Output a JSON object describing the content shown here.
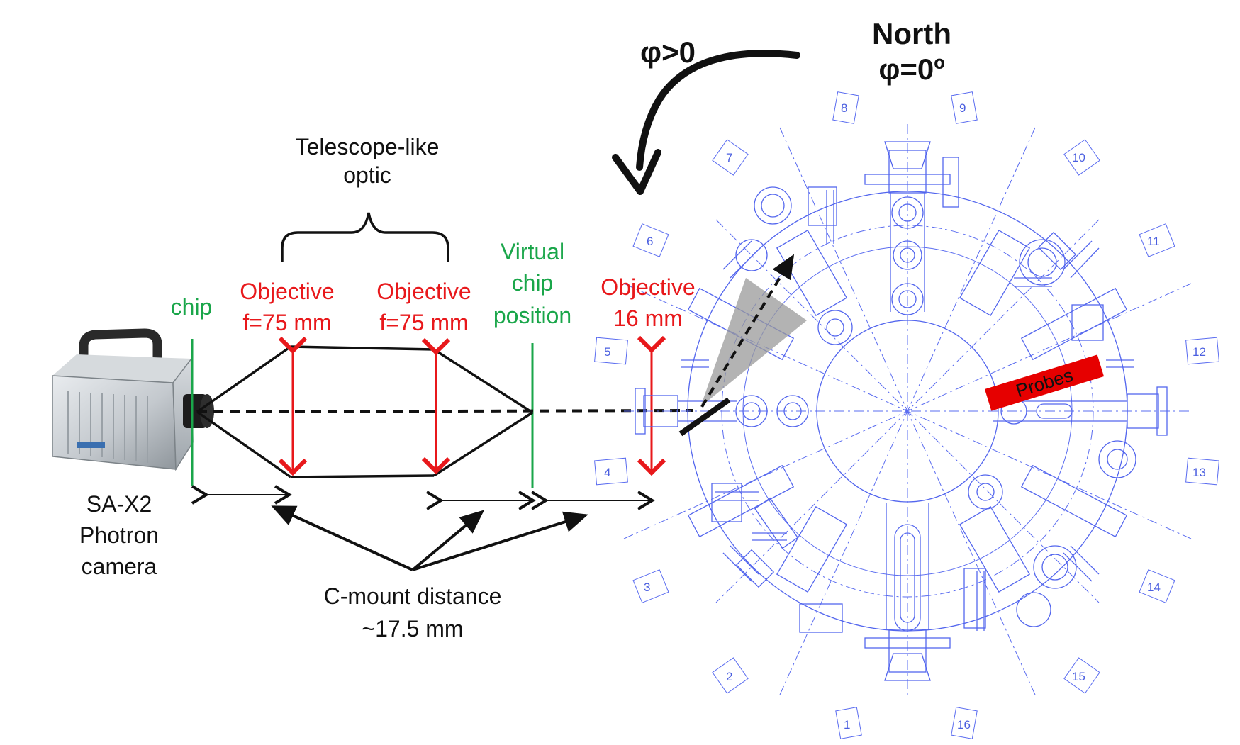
{
  "title": {
    "north": "North",
    "phi_zero": "φ=0º",
    "phi_positive": "φ>0"
  },
  "labels": {
    "telescope_line1": "Telescope-like",
    "telescope_line2": "optic",
    "chip": "chip",
    "objective1_line1": "Objective",
    "objective1_line2": "f=75 mm",
    "objective2_line1": "Objective",
    "objective2_line2": "f=75 mm",
    "virtual_line1": "Virtual",
    "virtual_line2": "chip",
    "virtual_line3": "position",
    "objective3_line1": "Objective",
    "objective3_line2": "16 mm",
    "camera_line1": "SA-X2",
    "camera_line2": "Photron",
    "camera_line3": "camera",
    "cmount_line1": "C-mount distance",
    "cmount_line2": "~17.5 mm",
    "probes": "Probes"
  },
  "ports": [
    "1",
    "2",
    "3",
    "4",
    "5",
    "6",
    "7",
    "8",
    "9",
    "10",
    "11",
    "12",
    "13",
    "14",
    "15",
    "16"
  ],
  "colors": {
    "red": "#e8181b",
    "green": "#1aa64a",
    "chamber_blue": "#5366ee",
    "black": "#111111",
    "probe_red": "#e60000",
    "cone_gray": "#9a9a9a"
  }
}
